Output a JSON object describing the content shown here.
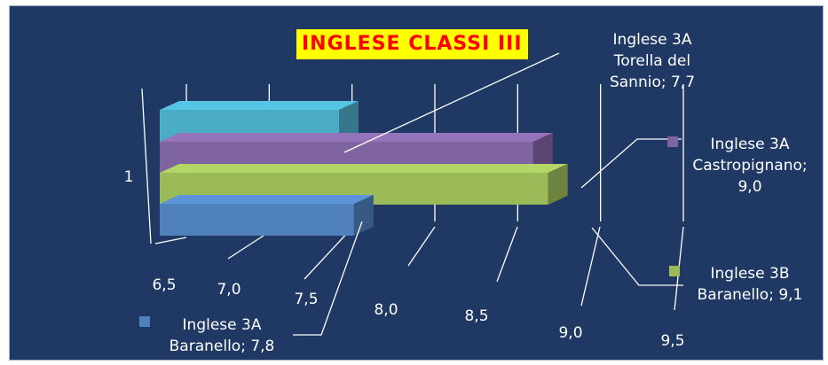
{
  "chart_data": {
    "type": "bar",
    "orientation": "horizontal",
    "title": "INGLESE CLASSI III",
    "categories": [
      "1"
    ],
    "xlim": [
      6.5,
      9.5
    ],
    "x_ticks": [
      "6,5",
      "7,0",
      "7,5",
      "8,0",
      "8,5",
      "9,0",
      "9,5"
    ],
    "series": [
      {
        "name": "Inglese 3A Torella del Sannio",
        "value": 7.7,
        "label": "Inglese 3A Torella del Sannio; 7,7",
        "color": "#4bacc6"
      },
      {
        "name": "Inglese 3A Castropignano",
        "value": 9.0,
        "label": "Inglese 3A Castropignano; 9,0",
        "color": "#8064a2"
      },
      {
        "name": "Inglese 3B Baranello",
        "value": 9.1,
        "label": "Inglese 3B Baranello; 9,1",
        "color": "#9bbb59"
      },
      {
        "name": "Inglese 3A Baranello",
        "value": 7.8,
        "label": "Inglese 3A Baranello; 7,8",
        "color": "#4f81bd"
      }
    ]
  }
}
